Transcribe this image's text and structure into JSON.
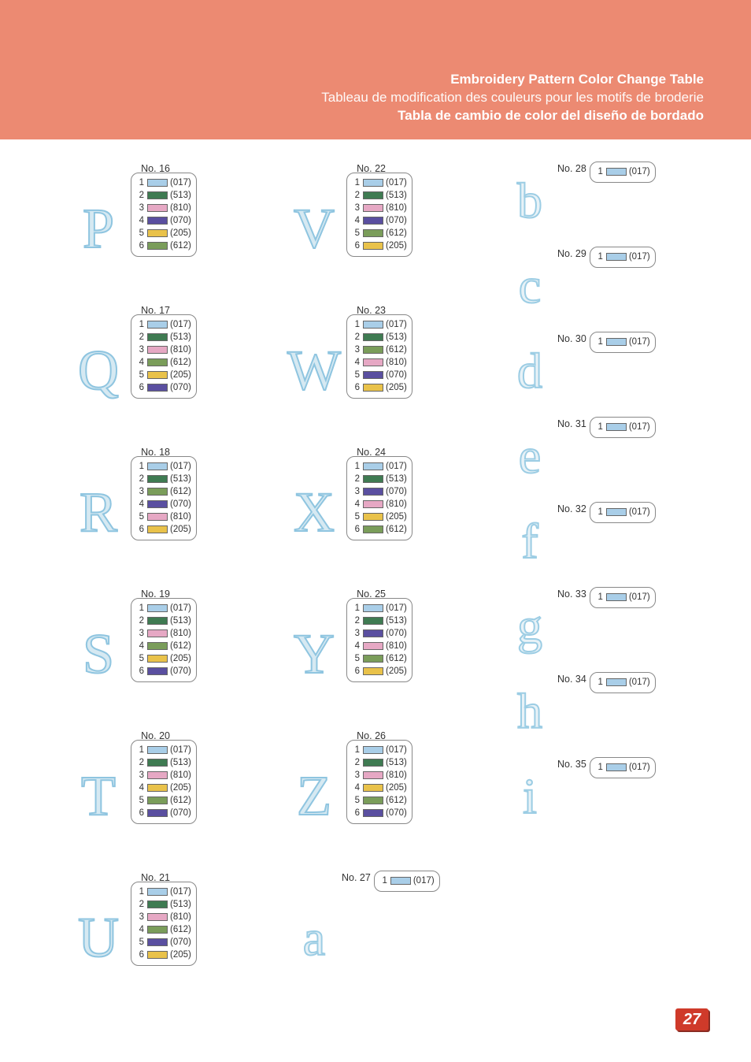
{
  "page_number": "27",
  "header": {
    "title_en": "Embroidery Pattern Color Change Table",
    "title_fr": "Tableau de modification des couleurs pour les motifs de broderie",
    "title_es": "Tabla de cambio de color del diseño de bordado",
    "background_color": "#ec8a72",
    "text_color": "#ffffff"
  },
  "thread_colors": {
    "017": "#a9cee8",
    "513": "#3f7b52",
    "810": "#e6a8c4",
    "070": "#5a4fa0",
    "205": "#e9c24a",
    "612": "#7a9d5a"
  },
  "columns": [
    {
      "style": "upper",
      "entries": [
        {
          "no": "16",
          "glyph": "P",
          "colors": [
            "017",
            "513",
            "810",
            "070",
            "205",
            "612"
          ]
        },
        {
          "no": "17",
          "glyph": "Q",
          "colors": [
            "017",
            "513",
            "810",
            "612",
            "205",
            "070"
          ]
        },
        {
          "no": "18",
          "glyph": "R",
          "colors": [
            "017",
            "513",
            "612",
            "070",
            "810",
            "205"
          ]
        },
        {
          "no": "19",
          "glyph": "S",
          "colors": [
            "017",
            "513",
            "810",
            "612",
            "205",
            "070"
          ]
        },
        {
          "no": "20",
          "glyph": "T",
          "colors": [
            "017",
            "513",
            "810",
            "205",
            "612",
            "070"
          ]
        },
        {
          "no": "21",
          "glyph": "U",
          "colors": [
            "017",
            "513",
            "810",
            "612",
            "070",
            "205"
          ]
        }
      ]
    },
    {
      "style": "upper",
      "entries": [
        {
          "no": "22",
          "glyph": "V",
          "colors": [
            "017",
            "513",
            "810",
            "070",
            "612",
            "205"
          ]
        },
        {
          "no": "23",
          "glyph": "W",
          "colors": [
            "017",
            "513",
            "612",
            "810",
            "070",
            "205"
          ]
        },
        {
          "no": "24",
          "glyph": "X",
          "colors": [
            "017",
            "513",
            "070",
            "810",
            "205",
            "612"
          ]
        },
        {
          "no": "25",
          "glyph": "Y",
          "colors": [
            "017",
            "513",
            "070",
            "810",
            "612",
            "205"
          ]
        },
        {
          "no": "26",
          "glyph": "Z",
          "colors": [
            "017",
            "513",
            "810",
            "205",
            "612",
            "070"
          ]
        },
        {
          "no": "27",
          "glyph": "a",
          "colors": [
            "017"
          ],
          "style_override": "lower"
        }
      ]
    },
    {
      "style": "lower",
      "entries": [
        {
          "no": "28",
          "glyph": "b",
          "colors": [
            "017"
          ]
        },
        {
          "no": "29",
          "glyph": "c",
          "colors": [
            "017"
          ]
        },
        {
          "no": "30",
          "glyph": "d",
          "colors": [
            "017"
          ]
        },
        {
          "no": "31",
          "glyph": "e",
          "colors": [
            "017"
          ]
        },
        {
          "no": "32",
          "glyph": "f",
          "colors": [
            "017"
          ]
        },
        {
          "no": "33",
          "glyph": "g",
          "colors": [
            "017"
          ]
        },
        {
          "no": "34",
          "glyph": "h",
          "colors": [
            "017"
          ]
        },
        {
          "no": "35",
          "glyph": "i",
          "colors": [
            "017"
          ]
        }
      ]
    }
  ],
  "label_prefix": "No. "
}
